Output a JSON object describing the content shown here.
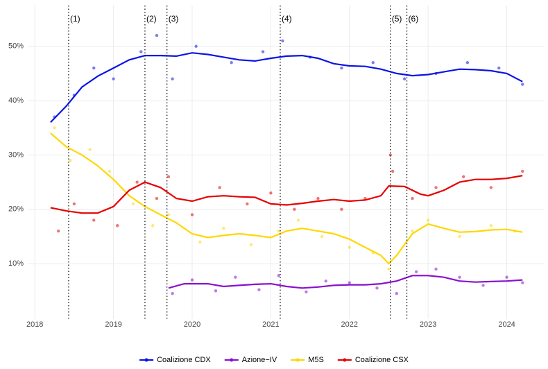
{
  "chart_data": {
    "type": "line",
    "xlim": [
      2017.91,
      2024.48
    ],
    "xticks": [
      2018,
      2019,
      2020,
      2021,
      2022,
      2023,
      2024
    ],
    "ylim": [
      -0.2,
      57.5
    ],
    "yticks": [
      {
        "value": 10,
        "label": "10%"
      },
      {
        "value": 20,
        "label": "20%"
      },
      {
        "value": 30,
        "label": "30%"
      },
      {
        "value": 40,
        "label": "40%"
      },
      {
        "value": 50,
        "label": "50%"
      }
    ],
    "grid": true,
    "legend": "bottom",
    "annotations": [
      {
        "x": 2018.43,
        "label": "(1)"
      },
      {
        "x": 2019.4,
        "label": "(2)"
      },
      {
        "x": 2019.68,
        "label": "(3)"
      },
      {
        "x": 2021.12,
        "label": "(4)"
      },
      {
        "x": 2022.52,
        "label": "(5)"
      },
      {
        "x": 2022.73,
        "label": "(6)"
      }
    ],
    "series": [
      {
        "name": "Coalizione CDX",
        "color": "#0a14e6",
        "x": [
          2018.2,
          2018.4,
          2018.6,
          2018.8,
          2019.0,
          2019.2,
          2019.4,
          2019.6,
          2019.8,
          2020.0,
          2020.2,
          2020.4,
          2020.6,
          2020.8,
          2021.0,
          2021.2,
          2021.4,
          2021.6,
          2021.8,
          2022.0,
          2022.2,
          2022.4,
          2022.6,
          2022.8,
          2023.0,
          2023.2,
          2023.4,
          2023.6,
          2023.8,
          2024.0,
          2024.2
        ],
        "values": [
          36,
          39,
          42.5,
          44.5,
          46,
          47.5,
          48.3,
          48.3,
          48.2,
          48.8,
          48.5,
          48,
          47.5,
          47.3,
          47.8,
          48.2,
          48.3,
          47.8,
          46.8,
          46.4,
          46.3,
          45.8,
          45,
          44.6,
          44.8,
          45.3,
          45.8,
          45.7,
          45.5,
          45,
          43.5
        ],
        "scatter_x": [
          2018.25,
          2018.5,
          2018.75,
          2019.0,
          2019.35,
          2019.55,
          2019.75,
          2020.05,
          2020.5,
          2020.9,
          2021.15,
          2021.5,
          2021.9,
          2022.3,
          2022.7,
          2023.1,
          2023.5,
          2023.9,
          2024.2
        ],
        "scatter_y": [
          37,
          41,
          46,
          44,
          49,
          52,
          44,
          50,
          47,
          49,
          51,
          48,
          46,
          47,
          44,
          45,
          47,
          46,
          43
        ]
      },
      {
        "name": "Azione−IV",
        "color": "#8a0fd0",
        "x": [
          2019.7,
          2019.9,
          2020.2,
          2020.4,
          2020.6,
          2020.8,
          2021.0,
          2021.2,
          2021.4,
          2021.6,
          2021.8,
          2022.0,
          2022.2,
          2022.4,
          2022.6,
          2022.8,
          2023.0,
          2023.2,
          2023.4,
          2023.6,
          2023.8,
          2024.0,
          2024.2
        ],
        "values": [
          5.5,
          6.3,
          6.3,
          5.8,
          6,
          6.2,
          6.3,
          5.8,
          5.5,
          5.7,
          6,
          6.1,
          6.1,
          6.3,
          6.8,
          7.8,
          7.8,
          7.5,
          6.8,
          6.6,
          6.7,
          6.8,
          7
        ],
        "scatter_x": [
          2019.75,
          2020.0,
          2020.3,
          2020.55,
          2020.85,
          2021.1,
          2021.45,
          2021.7,
          2022.0,
          2022.35,
          2022.6,
          2022.85,
          2023.1,
          2023.4,
          2023.7,
          2024.0,
          2024.2
        ],
        "scatter_y": [
          4.5,
          7,
          5,
          7.5,
          5.2,
          7.8,
          4.8,
          6.8,
          6.5,
          5.5,
          4.5,
          8.5,
          9,
          7.5,
          6,
          7.5,
          6.5
        ]
      },
      {
        "name": "M5S",
        "color": "#ffd700",
        "x": [
          2018.2,
          2018.4,
          2018.6,
          2018.8,
          2019.0,
          2019.2,
          2019.4,
          2019.6,
          2019.8,
          2020.0,
          2020.2,
          2020.4,
          2020.6,
          2020.8,
          2021.0,
          2021.2,
          2021.4,
          2021.6,
          2021.8,
          2022.0,
          2022.2,
          2022.4,
          2022.5,
          2022.6,
          2022.8,
          2023.0,
          2023.2,
          2023.4,
          2023.6,
          2023.8,
          2024.0,
          2024.2
        ],
        "values": [
          34,
          31.5,
          30,
          28,
          25.5,
          22.5,
          20.5,
          19,
          17.5,
          15.5,
          14.8,
          15.2,
          15.5,
          15.2,
          14.8,
          16,
          16.5,
          16,
          15.5,
          14.5,
          13,
          11.5,
          10,
          11.5,
          15.5,
          17.3,
          16.5,
          15.8,
          15.9,
          16.2,
          16.3,
          15.8
        ],
        "scatter_x": [
          2018.25,
          2018.45,
          2018.7,
          2018.95,
          2019.25,
          2019.5,
          2019.7,
          2020.1,
          2020.4,
          2020.75,
          2021.1,
          2021.35,
          2021.65,
          2022.0,
          2022.3,
          2022.5,
          2022.8,
          2023.0,
          2023.4,
          2023.8,
          2024.1
        ],
        "scatter_y": [
          35,
          29,
          31,
          27,
          21,
          17,
          19,
          14,
          16.5,
          13.5,
          16,
          18,
          15,
          13,
          12,
          9,
          16,
          18,
          15,
          17,
          16
        ]
      },
      {
        "name": "Coalizione CSX",
        "color": "#e60000",
        "x": [
          2018.2,
          2018.4,
          2018.6,
          2018.8,
          2019.0,
          2019.2,
          2019.4,
          2019.6,
          2019.8,
          2020.0,
          2020.2,
          2020.4,
          2020.6,
          2020.8,
          2021.0,
          2021.2,
          2021.4,
          2021.6,
          2021.8,
          2022.0,
          2022.2,
          2022.4,
          2022.5,
          2022.7,
          2022.9,
          2023.0,
          2023.2,
          2023.4,
          2023.6,
          2023.8,
          2024.0,
          2024.2
        ],
        "values": [
          20.3,
          19.7,
          19.3,
          19.3,
          20.5,
          23.5,
          25,
          24,
          22,
          21.5,
          22.3,
          22.5,
          22.3,
          22.2,
          21,
          20.8,
          21.1,
          21.5,
          21.8,
          21.5,
          21.7,
          22.5,
          24.3,
          24.2,
          22.8,
          22.5,
          23.5,
          25,
          25.5,
          25.5,
          25.7,
          26.2
        ],
        "scatter_x": [
          2018.3,
          2018.5,
          2018.75,
          2019.05,
          2019.3,
          2019.55,
          2019.7,
          2020.0,
          2020.35,
          2020.7,
          2021.0,
          2021.3,
          2021.6,
          2021.9,
          2022.2,
          2022.52,
          2022.55,
          2022.8,
          2023.1,
          2023.45,
          2023.8,
          2024.2
        ],
        "scatter_y": [
          16,
          21,
          18,
          17,
          25,
          22,
          26,
          19,
          24,
          21,
          23,
          20,
          22,
          20,
          22,
          30,
          27,
          22,
          24,
          26,
          24,
          27
        ]
      }
    ]
  }
}
